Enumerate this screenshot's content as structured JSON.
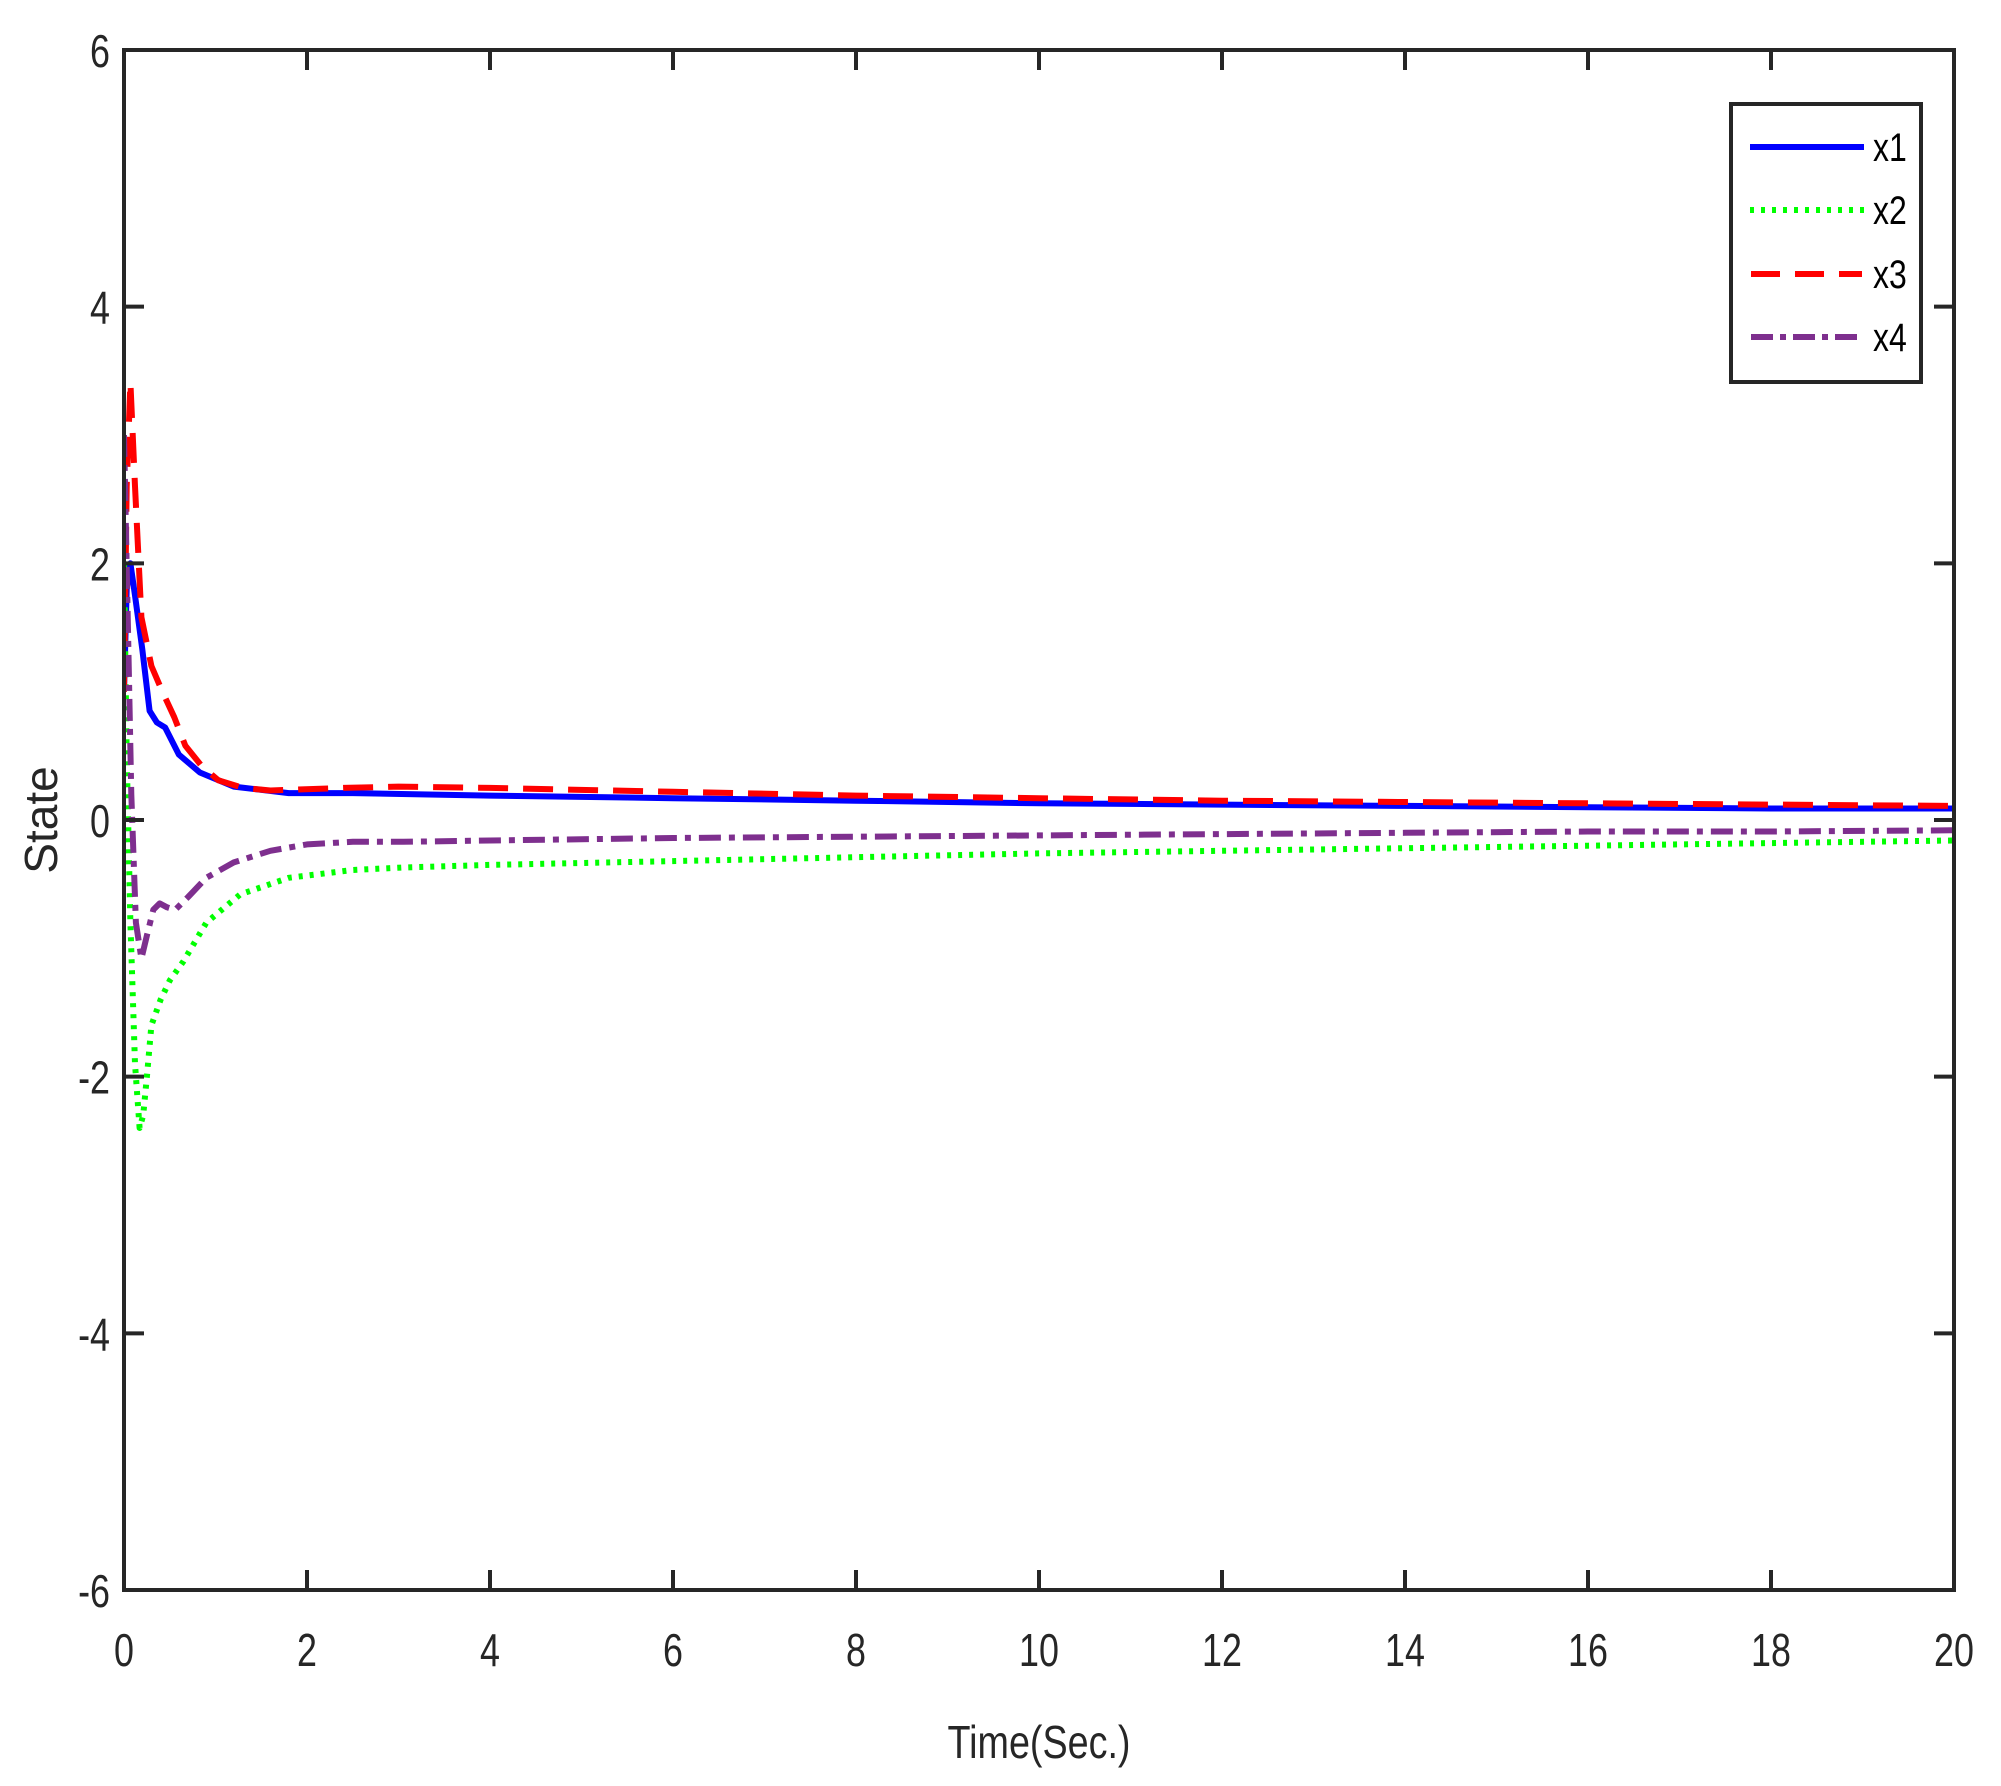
{
  "chart_data": {
    "type": "line",
    "title": "",
    "xlabel": "Time(Sec.)",
    "ylabel": "State",
    "xlim": [
      0,
      20
    ],
    "ylim": [
      -6,
      6
    ],
    "xticks": [
      0,
      2,
      4,
      6,
      8,
      10,
      12,
      14,
      16,
      18,
      20
    ],
    "yticks": [
      -6,
      -4,
      -2,
      0,
      2,
      4,
      6
    ],
    "xtick_labels": [
      "0",
      "2",
      "4",
      "6",
      "8",
      "10",
      "12",
      "14",
      "16",
      "18",
      "20"
    ],
    "ytick_labels": [
      "-6",
      "-4",
      "-2",
      "0",
      "2",
      "4",
      "6"
    ],
    "grid": false,
    "legend_position": "upper right",
    "series": [
      {
        "name": "x1",
        "color": "#0000ff",
        "style": "solid",
        "x": [
          0,
          0.03,
          0.07,
          0.12,
          0.2,
          0.28,
          0.36,
          0.45,
          0.6,
          0.83,
          1.2,
          1.8,
          2.5,
          4,
          6,
          8,
          10,
          12,
          14,
          16,
          18,
          20
        ],
        "y": [
          1.0,
          1.8,
          2.0,
          1.75,
          1.33,
          0.85,
          0.76,
          0.72,
          0.51,
          0.37,
          0.26,
          0.21,
          0.21,
          0.19,
          0.17,
          0.15,
          0.13,
          0.12,
          0.11,
          0.1,
          0.09,
          0.09
        ]
      },
      {
        "name": "x2",
        "color": "#00ff00",
        "style": "dotted",
        "x": [
          0,
          0.03,
          0.07,
          0.12,
          0.17,
          0.21,
          0.25,
          0.3,
          0.4,
          0.5,
          0.65,
          0.9,
          1.27,
          1.8,
          2.5,
          3.05,
          4,
          6,
          8,
          10,
          12,
          14,
          16,
          18,
          20
        ],
        "y": [
          2.0,
          0.5,
          -0.8,
          -1.9,
          -2.4,
          -2.3,
          -2.0,
          -1.6,
          -1.4,
          -1.25,
          -1.1,
          -0.8,
          -0.58,
          -0.45,
          -0.39,
          -0.37,
          -0.35,
          -0.32,
          -0.29,
          -0.26,
          -0.24,
          -0.22,
          -0.2,
          -0.18,
          -0.16
        ]
      },
      {
        "name": "x3",
        "color": "#ff0000",
        "style": "dashed",
        "x": [
          0,
          0.03,
          0.07,
          0.12,
          0.19,
          0.3,
          0.42,
          0.55,
          0.67,
          0.85,
          1.03,
          1.3,
          1.6,
          2.4,
          3,
          4,
          6,
          8,
          10,
          12,
          14,
          16,
          18,
          20
        ],
        "y": [
          1.0,
          2.6,
          3.41,
          2.6,
          1.58,
          1.2,
          1.0,
          0.8,
          0.58,
          0.42,
          0.31,
          0.25,
          0.23,
          0.25,
          0.26,
          0.25,
          0.22,
          0.19,
          0.17,
          0.15,
          0.14,
          0.13,
          0.12,
          0.11
        ]
      },
      {
        "name": "x4",
        "color": "#7e2f8e",
        "style": "dashdot",
        "x": [
          0,
          0.04,
          0.08,
          0.13,
          0.19,
          0.25,
          0.32,
          0.39,
          0.47,
          0.56,
          0.7,
          0.9,
          1.2,
          1.6,
          2.0,
          2.5,
          3.05,
          4,
          6,
          8,
          10,
          12,
          14,
          16,
          18,
          20
        ],
        "y": [
          3.0,
          1.6,
          0.2,
          -0.8,
          -1.08,
          -0.9,
          -0.7,
          -0.65,
          -0.68,
          -0.7,
          -0.6,
          -0.45,
          -0.33,
          -0.24,
          -0.19,
          -0.17,
          -0.17,
          -0.16,
          -0.14,
          -0.13,
          -0.12,
          -0.11,
          -0.1,
          -0.09,
          -0.09,
          -0.08
        ]
      }
    ]
  },
  "legend": {
    "entries": [
      {
        "label": "x1"
      },
      {
        "label": "x2"
      },
      {
        "label": "x3"
      },
      {
        "label": "x4"
      }
    ]
  },
  "axes": {
    "xlabel": "Time(Sec.)",
    "ylabel": "State"
  }
}
